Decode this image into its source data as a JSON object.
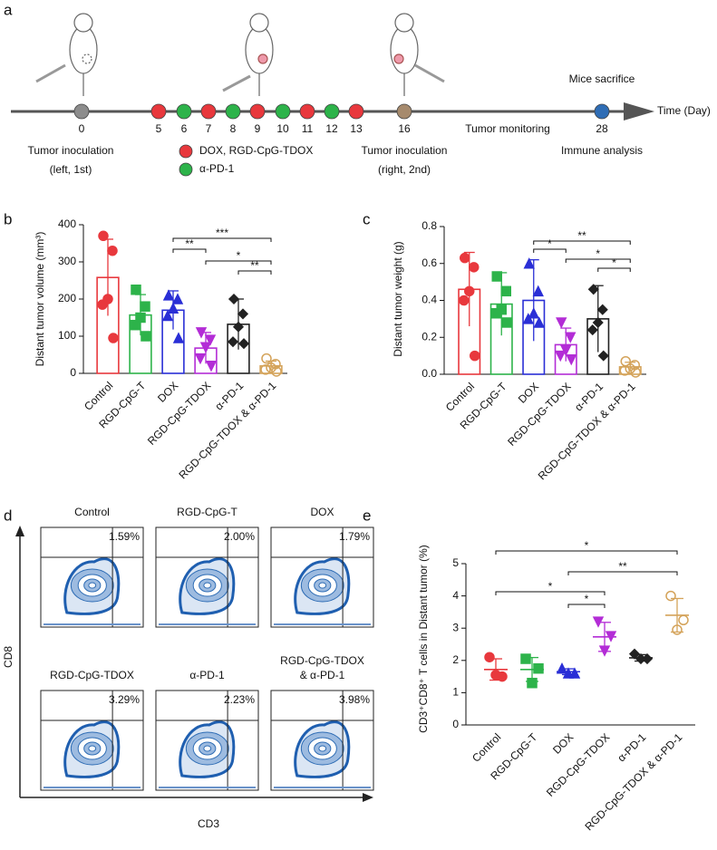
{
  "panel_labels": [
    "a",
    "b",
    "c",
    "d",
    "e"
  ],
  "timeline": {
    "days": [
      0,
      5,
      6,
      7,
      8,
      9,
      10,
      11,
      12,
      13,
      16,
      28
    ],
    "day_colors": [
      "#8c8c8c",
      "#e8383d",
      "#2db34a",
      "#e8383d",
      "#2db34a",
      "#e8383d",
      "#2db34a",
      "#e8383d",
      "#2db34a",
      "#e8383d",
      "#a68a6d",
      "#2f6db5"
    ],
    "axis_label": "Time (Day)",
    "end_event": "Mice sacrifice",
    "monitoring": "Tumor monitoring",
    "first_inoculation": [
      "Tumor inoculation",
      "(left, 1st)"
    ],
    "second_inoculation": [
      "Tumor inoculation",
      "(right, 2nd)"
    ],
    "analysis": "Immune analysis",
    "legend": [
      {
        "name": "DOX, RGD-CpG-TDOX",
        "color": "#e8383d"
      },
      {
        "name": "α-PD-1",
        "color": "#2db34a"
      }
    ]
  },
  "chart_data": [
    {
      "type": "bar",
      "y_label": "Distant tumor volume (mm³)",
      "categories": [
        "Control",
        "RGD-CpG-T",
        "DOX",
        "RGD-CpG-TDOX",
        "α-PD-1",
        "RGD-CpG-TDOX & α-PD-1"
      ],
      "colors": [
        "#e8383d",
        "#2db34a",
        "#2a2fd6",
        "#b32dd6",
        "#222222",
        "#d4a35a"
      ],
      "values": [
        258,
        157,
        170,
        68,
        132,
        20
      ],
      "errors": [
        103,
        55,
        52,
        42,
        68,
        13
      ],
      "points": [
        [
          370,
          330,
          200,
          185,
          95
        ],
        [
          225,
          180,
          150,
          130,
          100
        ],
        [
          210,
          200,
          175,
          155,
          95
        ],
        [
          110,
          90,
          70,
          40,
          20
        ],
        [
          200,
          160,
          125,
          85,
          80
        ],
        [
          40,
          25,
          15,
          10,
          5
        ]
      ],
      "ylim": [
        0,
        400
      ],
      "yticks": [
        0,
        100,
        200,
        300,
        400
      ],
      "significance": [
        {
          "pair": [
            2,
            5
          ],
          "label": "***"
        },
        {
          "pair": [
            2,
            3
          ],
          "label": "**"
        },
        {
          "pair": [
            3,
            5
          ],
          "label": "*"
        },
        {
          "pair": [
            4,
            5
          ],
          "label": "**"
        }
      ]
    },
    {
      "type": "bar",
      "y_label": "Distant tumor weight (g)",
      "categories": [
        "Control",
        "RGD-CpG-T",
        "DOX",
        "RGD-CpG-TDOX",
        "α-PD-1",
        "RGD-CpG-TDOX & α-PD-1"
      ],
      "colors": [
        "#e8383d",
        "#2db34a",
        "#2a2fd6",
        "#b32dd6",
        "#222222",
        "#d4a35a"
      ],
      "values": [
        0.46,
        0.38,
        0.4,
        0.16,
        0.3,
        0.04
      ],
      "errors": [
        0.2,
        0.17,
        0.22,
        0.09,
        0.18,
        0.025
      ],
      "points": [
        [
          0.63,
          0.58,
          0.45,
          0.4,
          0.1
        ],
        [
          0.53,
          0.45,
          0.35,
          0.33,
          0.28
        ],
        [
          0.6,
          0.45,
          0.33,
          0.3,
          0.28
        ],
        [
          0.28,
          0.2,
          0.13,
          0.1,
          0.08
        ],
        [
          0.46,
          0.35,
          0.28,
          0.24,
          0.1
        ],
        [
          0.07,
          0.05,
          0.03,
          0.02,
          0.01
        ]
      ],
      "ylim": [
        0,
        0.8
      ],
      "yticks": [
        {
          "value": 0,
          "label": "0.0"
        },
        {
          "value": 0.2,
          "label": "0.2"
        },
        {
          "value": 0.4,
          "label": "0.4"
        },
        {
          "value": 0.6,
          "label": "0.6"
        },
        {
          "value": 0.8,
          "label": "0.8"
        }
      ],
      "significance": [
        {
          "pair": [
            2,
            5
          ],
          "label": "**"
        },
        {
          "pair": [
            2,
            3
          ],
          "label": "*"
        },
        {
          "pair": [
            3,
            5
          ],
          "label": "*"
        },
        {
          "pair": [
            4,
            5
          ],
          "label": "*"
        }
      ]
    },
    {
      "type": "scatter",
      "y_label": "CD3⁺CD8⁺ T cells in Distant tumor (%)",
      "categories": [
        "Control",
        "RGD-CpG-T",
        "DOX",
        "RGD-CpG-TDOX",
        "α-PD-1",
        "RGD-CpG-TDOX & α-PD-1"
      ],
      "colors": [
        "#e8383d",
        "#2db34a",
        "#2a2fd6",
        "#b32dd6",
        "#222222",
        "#d4a35a"
      ],
      "values": [
        1.72,
        1.72,
        1.65,
        2.73,
        2.08,
        3.4
      ],
      "errors": [
        0.33,
        0.37,
        0.09,
        0.45,
        0.1,
        0.52
      ],
      "points": [
        [
          2.1,
          1.5,
          1.55
        ],
        [
          2.05,
          1.75,
          1.3
        ],
        [
          1.75,
          1.6,
          1.6
        ],
        [
          3.2,
          2.75,
          2.3
        ],
        [
          2.2,
          2.05,
          2.05
        ],
        [
          4.0,
          3.25,
          2.95
        ]
      ],
      "ylim": [
        0,
        5
      ],
      "yticks": [
        0,
        1,
        2,
        3,
        4,
        5
      ],
      "significance": [
        {
          "pair": [
            0,
            5
          ],
          "label": "*"
        },
        {
          "pair": [
            2,
            5
          ],
          "label": "**"
        },
        {
          "pair": [
            0,
            3
          ],
          "label": "*"
        },
        {
          "pair": [
            2,
            3
          ],
          "label": "*"
        }
      ]
    }
  ],
  "flow": {
    "y_axis": "CD8",
    "x_axis": "CD3",
    "plots": [
      {
        "title": [
          "Control"
        ],
        "percent": "1.59%"
      },
      {
        "title": [
          "RGD-CpG-T"
        ],
        "percent": "2.00%"
      },
      {
        "title": [
          "DOX"
        ],
        "percent": "1.79%"
      },
      {
        "title": [
          "RGD-CpG-TDOX"
        ],
        "percent": "3.29%"
      },
      {
        "title": [
          "α-PD-1"
        ],
        "percent": "2.23%"
      },
      {
        "title": [
          "RGD-CpG-TDOX",
          "& α-PD-1"
        ],
        "percent": "3.98%"
      }
    ]
  }
}
